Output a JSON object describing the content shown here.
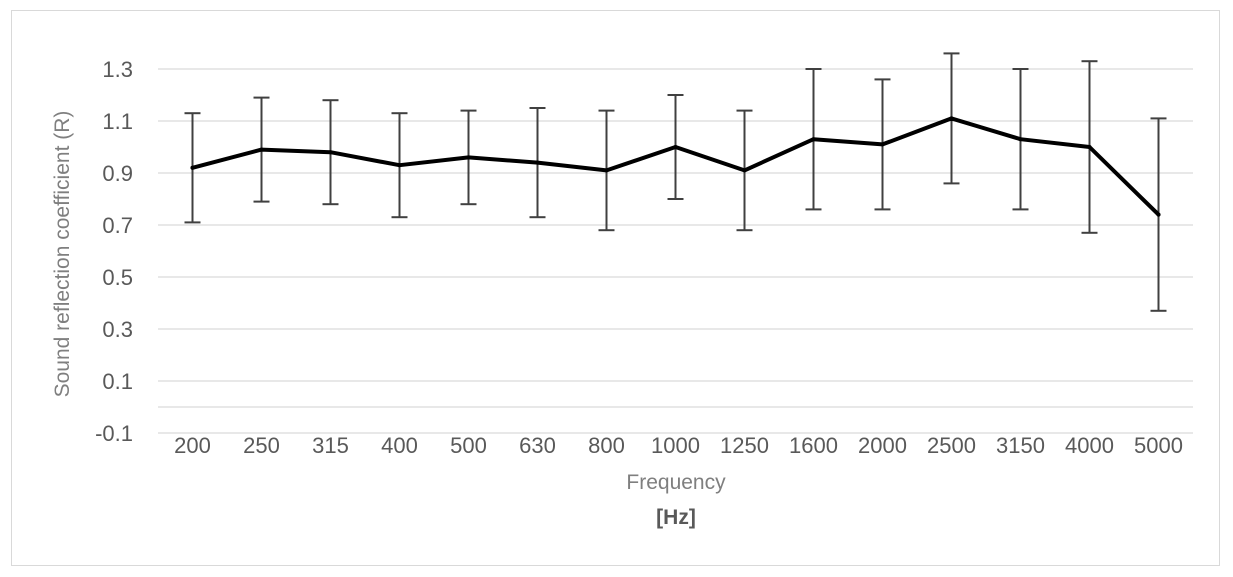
{
  "chart_data": {
    "type": "line",
    "title": "",
    "xlabel": "Frequency",
    "xlabel_unit": "[Hz]",
    "ylabel": "Sound reflection coefficient (R)",
    "ylim": [
      -0.1,
      1.4
    ],
    "yticks": [
      "1.3",
      "1.1",
      "0.9",
      "0.7",
      "0.5",
      "0.3",
      "0.1",
      "-0.1"
    ],
    "ytick_values": [
      1.3,
      1.1,
      0.9,
      0.7,
      0.5,
      0.3,
      0.1,
      -0.1
    ],
    "grid": true,
    "legend": "none",
    "categories": [
      "200",
      "250",
      "315",
      "400",
      "500",
      "630",
      "800",
      "1000",
      "1250",
      "1600",
      "2000",
      "2500",
      "3150",
      "4000",
      "5000"
    ],
    "series": [
      {
        "values": [
          0.92,
          0.99,
          0.98,
          0.93,
          0.96,
          0.94,
          0.91,
          1.0,
          0.91,
          1.03,
          1.01,
          1.11,
          1.03,
          1.0,
          0.74
        ],
        "error_upper": [
          1.13,
          1.19,
          1.18,
          1.13,
          1.14,
          1.15,
          1.14,
          1.2,
          1.14,
          1.3,
          1.26,
          1.36,
          1.3,
          1.33,
          1.11
        ],
        "error_lower": [
          0.71,
          0.79,
          0.78,
          0.73,
          0.78,
          0.73,
          0.68,
          0.8,
          0.68,
          0.76,
          0.76,
          0.86,
          0.76,
          0.67,
          0.37
        ]
      }
    ],
    "colors": {
      "line": "#000000",
      "error_bar": "#404040",
      "grid": "#d9d9d9",
      "tick_text": "#595959",
      "axis_title": "#7f7f7f"
    }
  }
}
